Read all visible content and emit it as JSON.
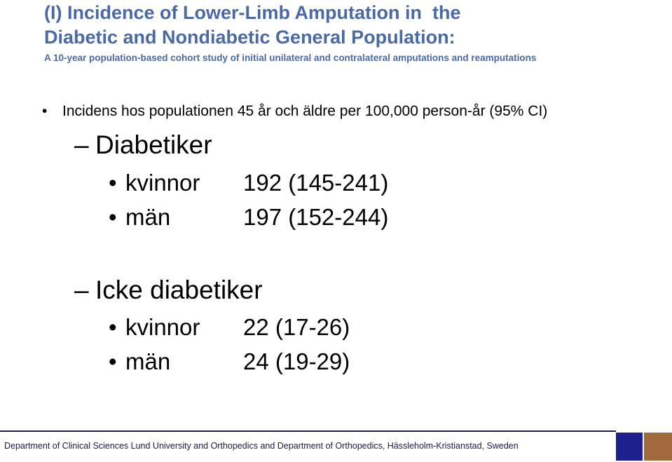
{
  "slide": {
    "title": "(I) Incidence of Lower-Limb Amputation in  the\nDiabetic and Nondiabetic General Population:",
    "subtitle": "A 10-year population-based cohort study of initial unilateral and contralateral amputations and reamputations",
    "bullet": {
      "symbol": "•",
      "text": "Incidens hos populationen 45 år och äldre per 100,000 person-år (95% CI)"
    },
    "groups": [
      {
        "dash": "–",
        "heading": "Diabetiker",
        "rows": [
          {
            "bullet": "•",
            "label": "kvinnor",
            "value": "192 (145-241)"
          },
          {
            "bullet": "•",
            "label": "män",
            "value": "197 (152-244)"
          }
        ]
      },
      {
        "dash": "–",
        "heading": "Icke diabetiker",
        "rows": [
          {
            "bullet": "•",
            "label": "kvinnor",
            "value": "22 (17-26)"
          },
          {
            "bullet": "•",
            "label": "män",
            "value": "24 (19-29)"
          }
        ]
      }
    ]
  },
  "footer": {
    "text": "Department of Clinical Sciences Lund University and Orthopedics and Department of Orthopedics, Hässleholm-Kristianstad, Sweden"
  },
  "colors": {
    "title": "#4a6aa5",
    "footer_text": "#1a1a4e",
    "footer_block_blue": "#1f1f8f",
    "footer_block_brown": "#a06a3c"
  }
}
